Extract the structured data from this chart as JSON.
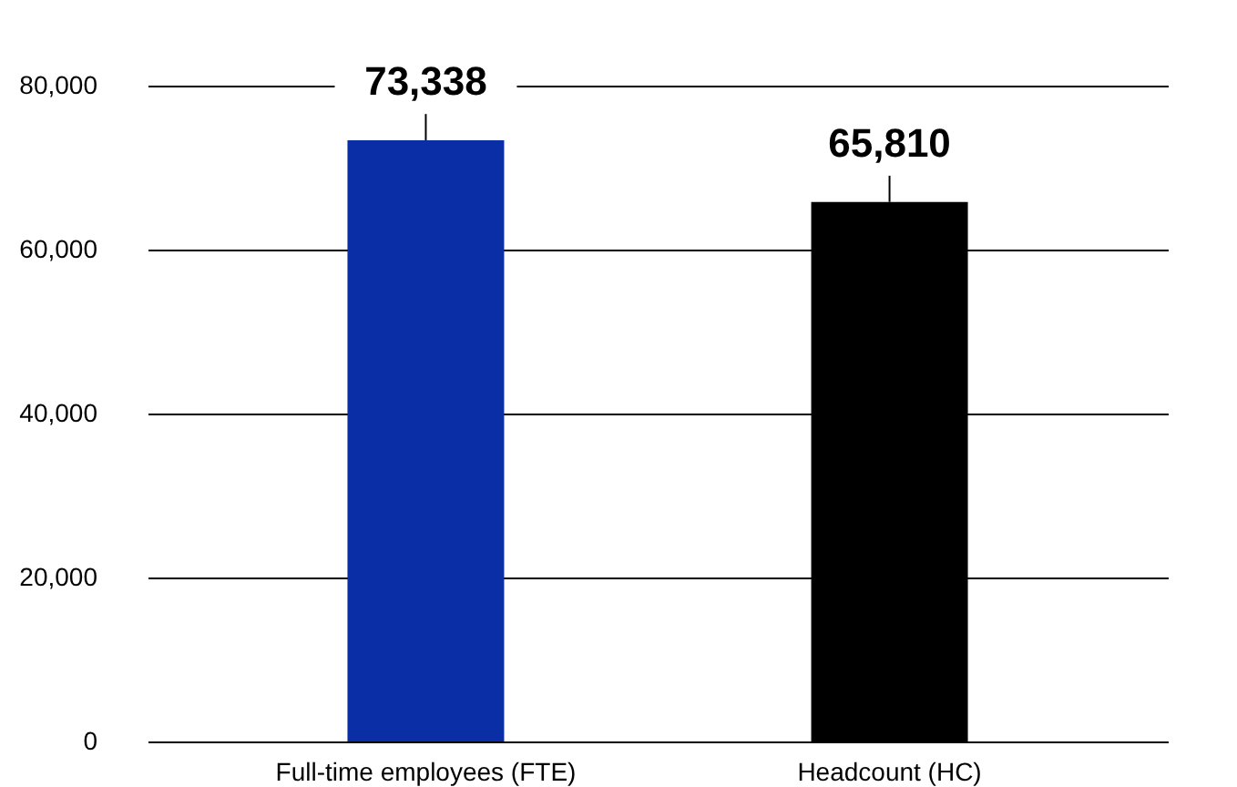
{
  "chart_data": {
    "type": "bar",
    "categories": [
      "Full-time employees (FTE)",
      "Headcount (HC)"
    ],
    "values": [
      73338,
      65810
    ],
    "colors": [
      "#0a2ea5",
      "#000000"
    ],
    "value_labels": [
      "73,338",
      "65,810"
    ],
    "ylim": [
      0,
      80000
    ],
    "yticks": [
      0,
      {
        "value": 20000,
        "label": "20,000"
      },
      {
        "value": 40000,
        "label": "40,000"
      },
      {
        "value": 60000,
        "label": "60,000"
      },
      {
        "value": 80000,
        "label": "80,000"
      }
    ],
    "grid": "y"
  }
}
